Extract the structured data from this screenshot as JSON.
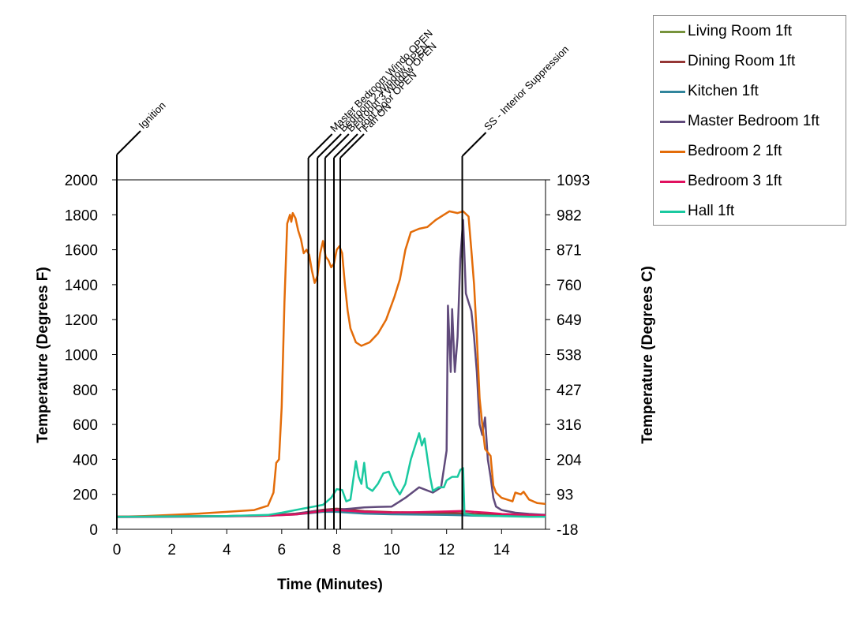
{
  "chart_data": {
    "type": "line",
    "xlabel": "Time (Minutes)",
    "ylabel": "Temperature (Degrees F)",
    "y2label": "Temperature (Degrees C)",
    "xlim": [
      0,
      15.6
    ],
    "ylim": [
      0,
      2000
    ],
    "x_ticks": [
      "0",
      "2",
      "4",
      "6",
      "8",
      "10",
      "12",
      "14"
    ],
    "y_ticks": [
      "0",
      "200",
      "400",
      "600",
      "800",
      "1000",
      "1200",
      "1400",
      "1600",
      "1800",
      "2000"
    ],
    "y2_ticks": [
      "-18",
      "93",
      "204",
      "316",
      "427",
      "538",
      "649",
      "760",
      "871",
      "982",
      "1093"
    ],
    "grid": false,
    "legend_position": "top-right",
    "events": [
      {
        "label": "Ignition",
        "x": 0.0
      },
      {
        "label": "Master Bedroom Windo OPEN",
        "x": 6.97
      },
      {
        "label": "Bedroom 2 Window OPEN",
        "x": 7.3
      },
      {
        "label": "Bedroom 3 Window OPEN",
        "x": 7.58
      },
      {
        "label": "Front Door OPEN",
        "x": 7.9
      },
      {
        "label": "Fan ON",
        "x": 8.13
      },
      {
        "label": "SS - Interior Suppression",
        "x": 12.57
      }
    ],
    "series": [
      {
        "name": "Living Room 1ft",
        "color": "#77933c",
        "points": [
          [
            0,
            72
          ],
          [
            2,
            74
          ],
          [
            4,
            76
          ],
          [
            5.5,
            80
          ],
          [
            6.5,
            88
          ],
          [
            7,
            95
          ],
          [
            7.5,
            105
          ],
          [
            8,
            110
          ],
          [
            8.5,
            108
          ],
          [
            9,
            100
          ],
          [
            10,
            96
          ],
          [
            11,
            94
          ],
          [
            12,
            92
          ],
          [
            12.6,
            90
          ],
          [
            13,
            85
          ],
          [
            14,
            80
          ],
          [
            15.6,
            78
          ]
        ]
      },
      {
        "name": "Dining Room 1ft",
        "color": "#953735",
        "points": [
          [
            0,
            72
          ],
          [
            2,
            74
          ],
          [
            4,
            76
          ],
          [
            5.5,
            80
          ],
          [
            6.5,
            90
          ],
          [
            7,
            100
          ],
          [
            7.5,
            112
          ],
          [
            8,
            118
          ],
          [
            8.5,
            112
          ],
          [
            9,
            104
          ],
          [
            10,
            98
          ],
          [
            11,
            96
          ],
          [
            12,
            95
          ],
          [
            12.6,
            92
          ],
          [
            13,
            88
          ],
          [
            14,
            82
          ],
          [
            15.6,
            80
          ]
        ]
      },
      {
        "name": "Kitchen 1ft",
        "color": "#31859c",
        "points": [
          [
            0,
            72
          ],
          [
            2,
            74
          ],
          [
            4,
            75
          ],
          [
            5.5,
            78
          ],
          [
            6.5,
            85
          ],
          [
            7,
            92
          ],
          [
            7.5,
            100
          ],
          [
            8,
            100
          ],
          [
            8.5,
            95
          ],
          [
            9,
            90
          ],
          [
            10,
            86
          ],
          [
            11,
            84
          ],
          [
            12,
            82
          ],
          [
            12.6,
            80
          ],
          [
            13,
            78
          ],
          [
            14,
            76
          ],
          [
            15.6,
            75
          ]
        ]
      },
      {
        "name": "Master Bedroom 1ft",
        "color": "#604a7b",
        "points": [
          [
            0,
            70
          ],
          [
            2,
            72
          ],
          [
            4,
            74
          ],
          [
            5.5,
            78
          ],
          [
            6.5,
            88
          ],
          [
            7,
            100
          ],
          [
            7.5,
            108
          ],
          [
            8,
            112
          ],
          [
            8.5,
            118
          ],
          [
            9,
            125
          ],
          [
            9.5,
            128
          ],
          [
            10,
            130
          ],
          [
            10.5,
            180
          ],
          [
            11,
            240
          ],
          [
            11.5,
            210
          ],
          [
            11.8,
            240
          ],
          [
            12,
            450
          ],
          [
            12.05,
            1280
          ],
          [
            12.15,
            900
          ],
          [
            12.2,
            1260
          ],
          [
            12.3,
            900
          ],
          [
            12.4,
            1100
          ],
          [
            12.5,
            1550
          ],
          [
            12.6,
            1770
          ],
          [
            12.7,
            1350
          ],
          [
            12.8,
            1300
          ],
          [
            12.9,
            1250
          ],
          [
            13,
            1100
          ],
          [
            13.1,
            900
          ],
          [
            13.2,
            600
          ],
          [
            13.3,
            540
          ],
          [
            13.4,
            640
          ],
          [
            13.5,
            400
          ],
          [
            13.6,
            300
          ],
          [
            13.7,
            180
          ],
          [
            13.8,
            130
          ],
          [
            14,
            110
          ],
          [
            14.5,
            95
          ],
          [
            15,
            88
          ],
          [
            15.6,
            82
          ]
        ]
      },
      {
        "name": "Bedroom 2 1ft",
        "color": "#e36c09",
        "points": [
          [
            0,
            72
          ],
          [
            1,
            76
          ],
          [
            2,
            82
          ],
          [
            3,
            90
          ],
          [
            4,
            100
          ],
          [
            5,
            110
          ],
          [
            5.5,
            135
          ],
          [
            5.7,
            210
          ],
          [
            5.8,
            380
          ],
          [
            5.9,
            400
          ],
          [
            6.0,
            700
          ],
          [
            6.1,
            1300
          ],
          [
            6.2,
            1750
          ],
          [
            6.3,
            1800
          ],
          [
            6.35,
            1760
          ],
          [
            6.4,
            1810
          ],
          [
            6.5,
            1780
          ],
          [
            6.6,
            1710
          ],
          [
            6.7,
            1660
          ],
          [
            6.8,
            1580
          ],
          [
            6.9,
            1600
          ],
          [
            7.0,
            1570
          ],
          [
            7.1,
            1480
          ],
          [
            7.2,
            1410
          ],
          [
            7.3,
            1450
          ],
          [
            7.4,
            1580
          ],
          [
            7.5,
            1650
          ],
          [
            7.6,
            1560
          ],
          [
            7.7,
            1540
          ],
          [
            7.8,
            1500
          ],
          [
            7.9,
            1520
          ],
          [
            8.0,
            1600
          ],
          [
            8.1,
            1620
          ],
          [
            8.2,
            1580
          ],
          [
            8.3,
            1400
          ],
          [
            8.4,
            1250
          ],
          [
            8.5,
            1150
          ],
          [
            8.7,
            1070
          ],
          [
            8.9,
            1050
          ],
          [
            9.2,
            1070
          ],
          [
            9.5,
            1120
          ],
          [
            9.8,
            1200
          ],
          [
            10.1,
            1330
          ],
          [
            10.3,
            1430
          ],
          [
            10.5,
            1600
          ],
          [
            10.7,
            1700
          ],
          [
            11,
            1720
          ],
          [
            11.3,
            1730
          ],
          [
            11.6,
            1770
          ],
          [
            11.9,
            1800
          ],
          [
            12.1,
            1820
          ],
          [
            12.4,
            1810
          ],
          [
            12.6,
            1820
          ],
          [
            12.8,
            1790
          ],
          [
            12.9,
            1600
          ],
          [
            13.0,
            1400
          ],
          [
            13.1,
            1100
          ],
          [
            13.2,
            750
          ],
          [
            13.3,
            600
          ],
          [
            13.4,
            460
          ],
          [
            13.5,
            440
          ],
          [
            13.6,
            420
          ],
          [
            13.7,
            250
          ],
          [
            13.8,
            210
          ],
          [
            14,
            180
          ],
          [
            14.2,
            170
          ],
          [
            14.4,
            160
          ],
          [
            14.5,
            210
          ],
          [
            14.7,
            200
          ],
          [
            14.8,
            215
          ],
          [
            15,
            170
          ],
          [
            15.3,
            150
          ],
          [
            15.6,
            145
          ]
        ]
      },
      {
        "name": "Bedroom 3 1ft",
        "color": "#e0115f",
        "points": [
          [
            0,
            72
          ],
          [
            2,
            74
          ],
          [
            4,
            75
          ],
          [
            5.5,
            78
          ],
          [
            6.5,
            85
          ],
          [
            7,
            95
          ],
          [
            7.5,
            105
          ],
          [
            8,
            110
          ],
          [
            8.5,
            105
          ],
          [
            9,
            100
          ],
          [
            10,
            96
          ],
          [
            11,
            98
          ],
          [
            12,
            102
          ],
          [
            12.6,
            105
          ],
          [
            13,
            100
          ],
          [
            13.5,
            95
          ],
          [
            14,
            88
          ],
          [
            15,
            82
          ],
          [
            15.6,
            80
          ]
        ]
      },
      {
        "name": "Hall 1ft",
        "color": "#1ac9a0",
        "points": [
          [
            0,
            72
          ],
          [
            2,
            74
          ],
          [
            4,
            76
          ],
          [
            5.5,
            82
          ],
          [
            6,
            95
          ],
          [
            6.5,
            110
          ],
          [
            7,
            125
          ],
          [
            7.5,
            140
          ],
          [
            7.8,
            180
          ],
          [
            8,
            230
          ],
          [
            8.2,
            225
          ],
          [
            8.35,
            160
          ],
          [
            8.5,
            170
          ],
          [
            8.7,
            390
          ],
          [
            8.8,
            300
          ],
          [
            8.9,
            260
          ],
          [
            9,
            380
          ],
          [
            9.1,
            240
          ],
          [
            9.3,
            220
          ],
          [
            9.5,
            260
          ],
          [
            9.7,
            320
          ],
          [
            9.9,
            330
          ],
          [
            10.1,
            250
          ],
          [
            10.3,
            200
          ],
          [
            10.5,
            260
          ],
          [
            10.7,
            400
          ],
          [
            10.9,
            500
          ],
          [
            11,
            550
          ],
          [
            11.1,
            480
          ],
          [
            11.2,
            520
          ],
          [
            11.4,
            300
          ],
          [
            11.5,
            220
          ],
          [
            11.7,
            240
          ],
          [
            11.9,
            240
          ],
          [
            12,
            280
          ],
          [
            12.2,
            300
          ],
          [
            12.4,
            300
          ],
          [
            12.5,
            340
          ],
          [
            12.6,
            350
          ],
          [
            12.65,
            90
          ],
          [
            13,
            80
          ],
          [
            14,
            75
          ],
          [
            15,
            72
          ],
          [
            15.6,
            72
          ]
        ]
      }
    ]
  }
}
